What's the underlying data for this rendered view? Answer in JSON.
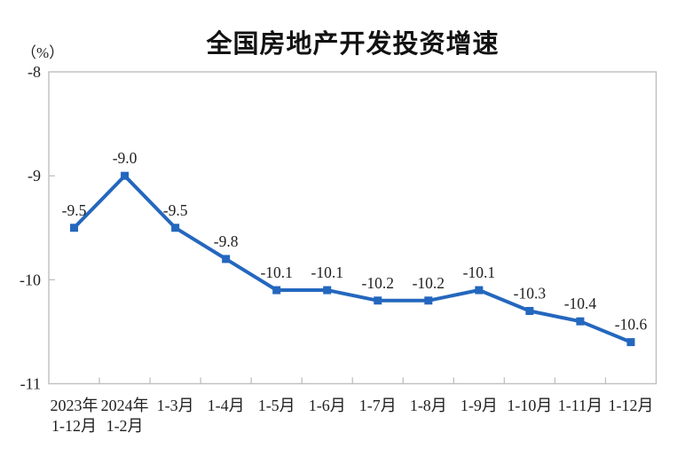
{
  "page": {
    "background": "#ffffff"
  },
  "chart": {
    "title": "全国房地产开发投资增速",
    "unit_label": "（%）"
  },
  "chart_data": {
    "type": "line",
    "title": "全国房地产开发投资增速",
    "ylabel": "（%）",
    "xlabel": "",
    "categories": [
      "2023年1-12月",
      "2024年1-2月",
      "1-3月",
      "1-4月",
      "1-5月",
      "1-6月",
      "1-7月",
      "1-8月",
      "1-9月",
      "1-10月",
      "1-11月",
      "1-12月"
    ],
    "category_display_lines": [
      [
        "2023年",
        "1-12月"
      ],
      [
        "2024年",
        "1-2月"
      ],
      [
        "1-3月"
      ],
      [
        "1-4月"
      ],
      [
        "1-5月"
      ],
      [
        "1-6月"
      ],
      [
        "1-7月"
      ],
      [
        "1-8月"
      ],
      [
        "1-9月"
      ],
      [
        "1-10月"
      ],
      [
        "1-11月"
      ],
      [
        "1-12月"
      ]
    ],
    "series": [
      {
        "name": "全国房地产开发投资增速",
        "values": [
          -9.5,
          -9.0,
          -9.5,
          -9.8,
          -10.1,
          -10.1,
          -10.2,
          -10.2,
          -10.1,
          -10.3,
          -10.4,
          -10.6
        ]
      }
    ],
    "data_labels": [
      "-9.5",
      "-9.0",
      "-9.5",
      "-9.8",
      "-10.1",
      "-10.1",
      "-10.2",
      "-10.2",
      "-10.1",
      "-10.3",
      "-10.4",
      "-10.6"
    ],
    "y_axis": {
      "min": -11,
      "max": -8,
      "tick_labels": [
        "-8",
        "-9",
        "-10",
        "-11"
      ],
      "tick_values": [
        -8,
        -9,
        -10,
        -11
      ]
    },
    "grid": false,
    "legend": "none",
    "colors": {
      "line": "#2467BE",
      "marker": "#2467BE",
      "axis": "#BFBFBF",
      "text": "#1f1f1f",
      "title": "#121212"
    }
  }
}
